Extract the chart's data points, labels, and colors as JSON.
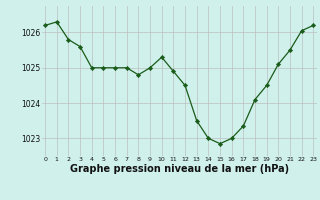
{
  "hours": [
    0,
    1,
    2,
    3,
    4,
    5,
    6,
    7,
    8,
    9,
    10,
    11,
    12,
    13,
    14,
    15,
    16,
    17,
    18,
    19,
    20,
    21,
    22,
    23
  ],
  "pressure": [
    1026.2,
    1026.3,
    1025.8,
    1025.6,
    1025.0,
    1025.0,
    1025.0,
    1025.0,
    1024.8,
    1025.0,
    1025.3,
    1024.9,
    1024.5,
    1023.5,
    1023.0,
    1022.85,
    1023.0,
    1023.35,
    1024.1,
    1024.5,
    1025.1,
    1025.5,
    1026.05,
    1026.2
  ],
  "line_color": "#1a5c1a",
  "marker": "D",
  "marker_size": 2.2,
  "bg_color": "#cff0eb",
  "grid_color": "#bbbbbb",
  "xlabel": "Graphe pression niveau de la mer (hPa)",
  "xlabel_fontsize": 7.0,
  "yticks": [
    1023,
    1024,
    1025,
    1026
  ],
  "xticks": [
    0,
    1,
    2,
    3,
    4,
    5,
    6,
    7,
    8,
    9,
    10,
    11,
    12,
    13,
    14,
    15,
    16,
    17,
    18,
    19,
    20,
    21,
    22,
    23
  ],
  "ylim": [
    1022.5,
    1026.75
  ],
  "xlim": [
    -0.3,
    23.3
  ]
}
